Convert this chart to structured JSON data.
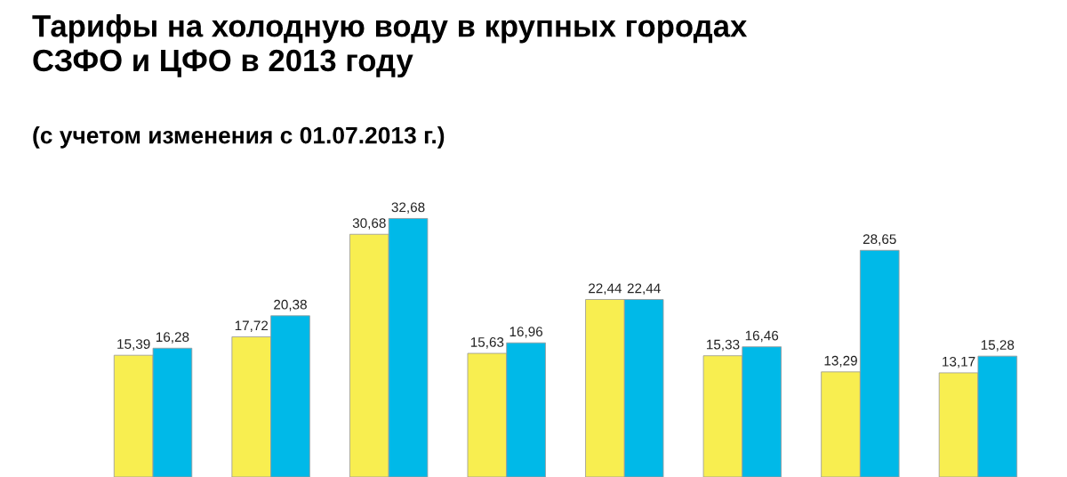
{
  "chart_data": {
    "type": "bar",
    "title": "Тарифы на холодную воду в крупных городах\nСЗФО и ЦФО в 2013 году",
    "subtitle": "(с учетом изменения с 01.07.2013 г.)",
    "categories": [
      null,
      null,
      null,
      null,
      null,
      null,
      null,
      null
    ],
    "series": [
      {
        "color": "#f8ee50",
        "values": [
          15.39,
          17.72,
          30.68,
          15.63,
          22.44,
          15.33,
          13.29,
          13.17
        ],
        "value_labels": [
          "15,39",
          "17,72",
          "30,68",
          "15,63",
          "22,44",
          "15,33",
          "13,29",
          "13,17"
        ]
      },
      {
        "color": "#00b9e8",
        "values": [
          16.28,
          20.38,
          32.68,
          16.96,
          22.44,
          16.46,
          28.65,
          15.28
        ],
        "value_labels": [
          "16,28",
          "20,38",
          "32,68",
          "16,96",
          "22,44",
          "16,46",
          "28,65",
          "15,28"
        ]
      }
    ],
    "legend": false,
    "grid": false
  }
}
